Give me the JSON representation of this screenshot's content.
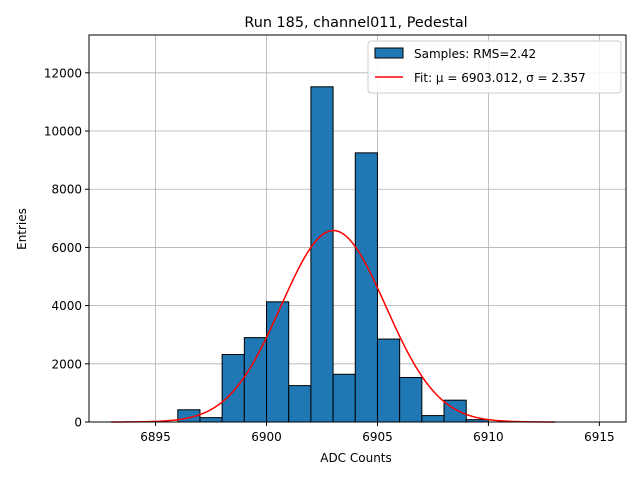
{
  "chart_data": {
    "type": "bar",
    "title": "Run 185, channel011, Pedestal",
    "xlabel": "ADC Counts",
    "ylabel": "Entries",
    "xlim": [
      6892,
      6916.2
    ],
    "ylim": [
      0,
      13300
    ],
    "x_ticks": [
      6895,
      6900,
      6905,
      6910,
      6915
    ],
    "y_ticks": [
      0,
      2000,
      4000,
      6000,
      8000,
      10000,
      12000
    ],
    "grid": true,
    "legend_position": "top-right",
    "bin_width": 1,
    "bins": [
      {
        "left": 6896,
        "count": 420
      },
      {
        "left": 6897,
        "count": 150
      },
      {
        "left": 6898,
        "count": 2320
      },
      {
        "left": 6899,
        "count": 2900
      },
      {
        "left": 6900,
        "count": 4130
      },
      {
        "left": 6901,
        "count": 1250
      },
      {
        "left": 6902,
        "count": 11520
      },
      {
        "left": 6903,
        "count": 1640
      },
      {
        "left": 6904,
        "count": 9250
      },
      {
        "left": 6905,
        "count": 2850
      },
      {
        "left": 6906,
        "count": 1530
      },
      {
        "left": 6907,
        "count": 220
      },
      {
        "left": 6908,
        "count": 750
      },
      {
        "left": 6909,
        "count": 80
      }
    ],
    "fit": {
      "mu": 6903.012,
      "sigma": 2.357,
      "amplitude": 6580,
      "x_range": [
        6893,
        6913
      ]
    },
    "series": [
      {
        "name": "Samples: RMS=2.42",
        "type": "histogram",
        "color": "#1f77b4",
        "edgecolor": "#000000"
      },
      {
        "name": "Fit: μ = 6903.012, σ = 2.357",
        "type": "line",
        "color": "#ff0000"
      }
    ]
  }
}
